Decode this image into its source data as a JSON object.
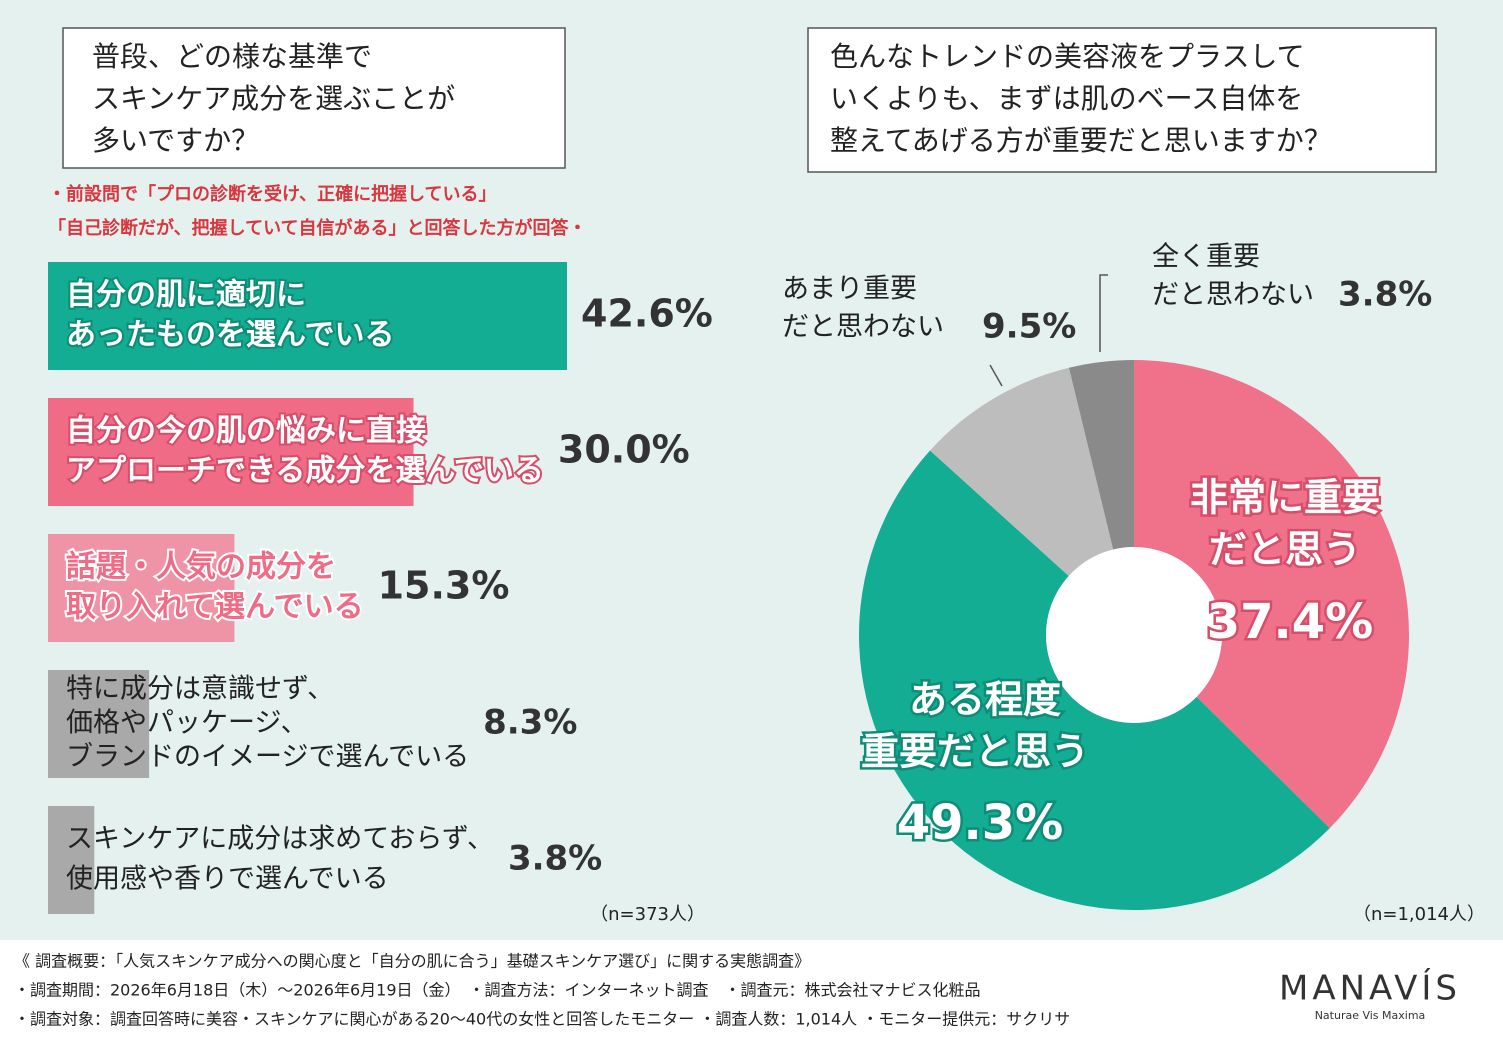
{
  "chart_data": [
    {
      "type": "bar",
      "orientation": "horizontal",
      "title": [
        "普段、どの様な基準で",
        "スキンケア成分を選ぶことが",
        "多いですか？"
      ],
      "subtitle": [
        "・前設問で「プロの診断を受け、正確に把握している」",
        "「自己診断だが、把握していて自信がある」と回答した方が回答・"
      ],
      "categories": [
        [
          "自分の肌に適切に",
          "あったものを選んでいる"
        ],
        [
          "自分の今の肌の悩みに直接",
          "アプローチできる成分を選んでいる"
        ],
        [
          "話題・人気の成分を",
          "取り入れて選んでいる"
        ],
        [
          "特に成分は意識せず、",
          "価格やパッケージ、",
          "ブランドのイメージで選んでいる"
        ],
        [
          "スキンケアに成分は求めておらず、",
          "使用感や香りで選んでいる"
        ]
      ],
      "values": [
        42.6,
        30.0,
        15.3,
        8.3,
        3.8
      ],
      "value_labels": [
        "42.6%",
        "30.0%",
        "15.3%",
        "8.3%",
        "3.8%"
      ],
      "colors": [
        "#13ad93",
        "#ef6b86",
        "#ef93a6",
        "#a9a9a9",
        "#a9a9a9"
      ],
      "note": "（n=373人）"
    },
    {
      "type": "pie",
      "donut": true,
      "title": [
        "色んなトレンドの美容液をプラスして",
        "いくよりも、まずは肌のベース自体を",
        "整えてあげる方が重要だと思いますか？"
      ],
      "categories": [
        [
          "非常に重要",
          "だと思う"
        ],
        [
          "ある程度",
          "重要だと思う"
        ],
        [
          "あまり重要",
          "だと思わない"
        ],
        [
          "全く重要",
          "だと思わない"
        ]
      ],
      "values": [
        37.4,
        49.3,
        9.5,
        3.8
      ],
      "value_labels": [
        "37.4%",
        "49.3%",
        "9.5%",
        "3.8%"
      ],
      "colors": [
        "#f0718a",
        "#13ad93",
        "#bdbdbd",
        "#8a8a8a"
      ],
      "note": "（n=1,014人）"
    }
  ],
  "footer": {
    "lines": [
      "《 調査概要：「人気スキンケア成分への関心度と「自分の肌に合う」基礎スキンケア選び」に関する実態調査》",
      "・調査期間：2026年6月18日（木）～2026年6月19日（金）　・調査方法：インターネット調査　・調査元：株式会社マナビス化粧品",
      "・調査対象：調査回答時に美容・スキンケアに関心がある20～40代の女性と回答したモニター ・調査人数：1,014人 ・モニター提供元：サクリサ"
    ],
    "logo": "MANAVÍS",
    "tagline": "Naturae Vis Maxima"
  }
}
